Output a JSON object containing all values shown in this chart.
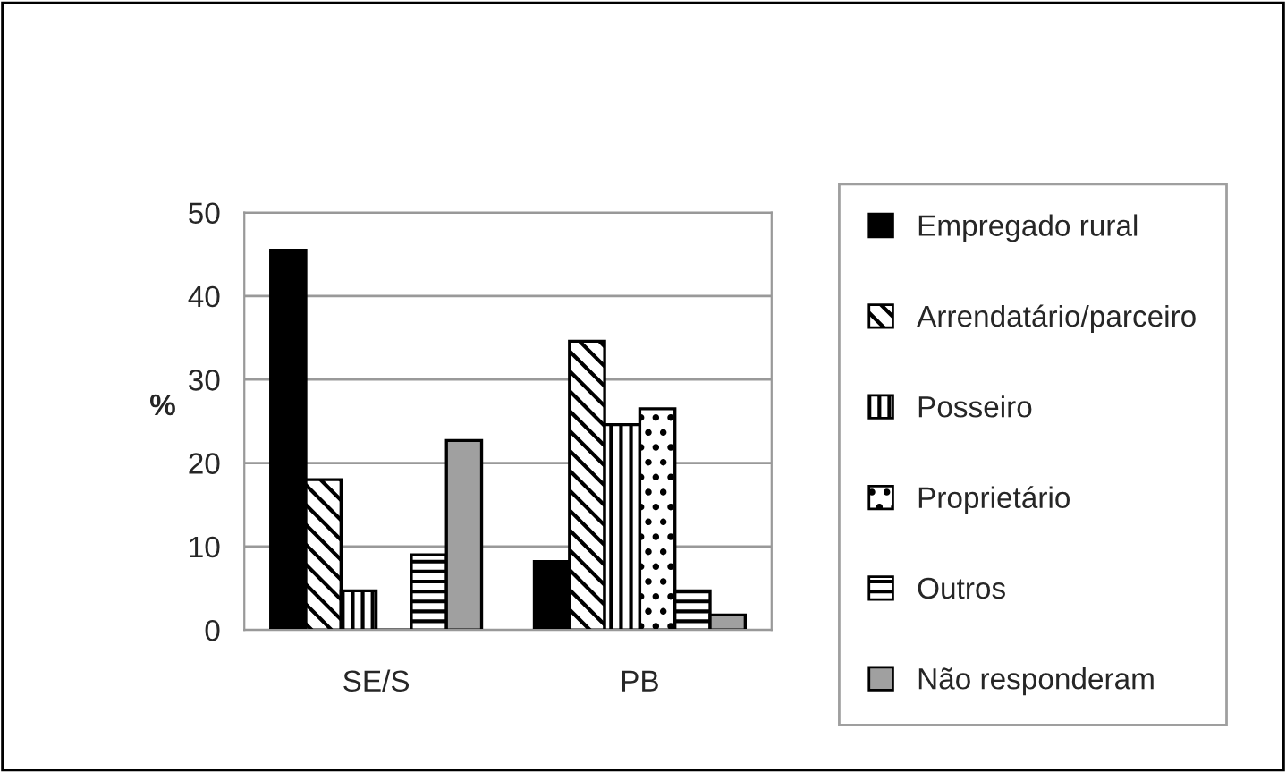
{
  "chart_data": {
    "type": "bar",
    "ylabel": "%",
    "categories": [
      "SE/S",
      "PB"
    ],
    "series": [
      {
        "name": "Empregado rural",
        "color": "#000000",
        "values": [
          45.5,
          8.2
        ]
      },
      {
        "name": "Arrendatário/parceiro",
        "color": "#000000",
        "values": [
          18.0,
          34.6
        ]
      },
      {
        "name": "Posseiro",
        "color": "#000000",
        "values": [
          4.7,
          24.6
        ]
      },
      {
        "name": "Proprietário",
        "color": "#000000",
        "values": [
          0,
          26.5
        ]
      },
      {
        "name": "Outros",
        "color": "#000000",
        "values": [
          9.0,
          4.7
        ]
      },
      {
        "name": "Não responderam",
        "color": "#a0a0a0",
        "values": [
          22.7,
          1.8
        ]
      }
    ],
    "ylim": [
      0,
      50
    ],
    "yticks": [
      0,
      10,
      20,
      30,
      40,
      50
    ],
    "grid": "y",
    "legend": "right"
  }
}
